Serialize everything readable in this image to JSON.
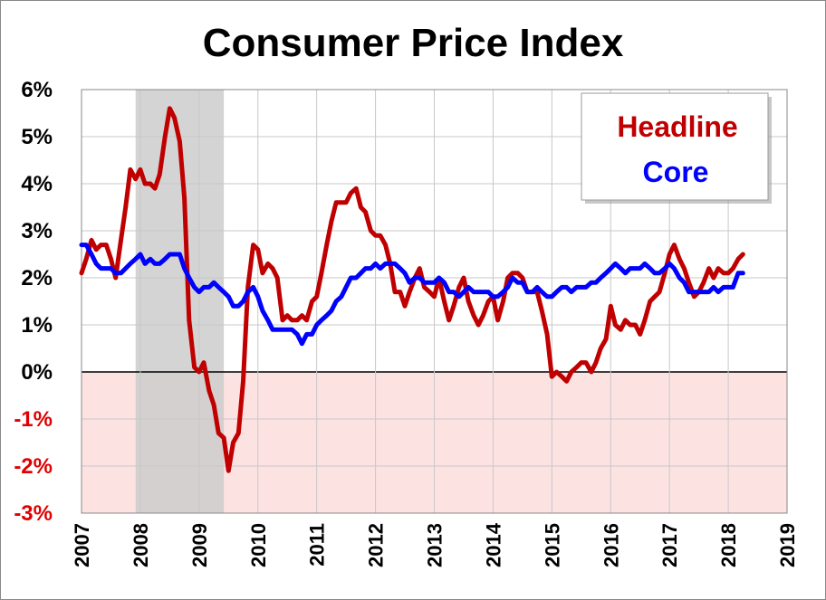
{
  "chart_data": {
    "type": "line",
    "title": "Consumer Price Index",
    "xlabel": "",
    "ylabel": "",
    "xlim": [
      2007,
      2019
    ],
    "ylim": [
      -3,
      6
    ],
    "x_ticks": [
      "2007",
      "2008",
      "2009",
      "2010",
      "2011",
      "2012",
      "2013",
      "2014",
      "2015",
      "2016",
      "2017",
      "2018",
      "2019"
    ],
    "y_ticks": [
      {
        "value": 6,
        "label": "6%"
      },
      {
        "value": 5,
        "label": "5%"
      },
      {
        "value": 4,
        "label": "4%"
      },
      {
        "value": 3,
        "label": "3%"
      },
      {
        "value": 2,
        "label": "2%"
      },
      {
        "value": 1,
        "label": "1%"
      },
      {
        "value": 0,
        "label": "0%"
      },
      {
        "value": -1,
        "label": "-1%"
      },
      {
        "value": -2,
        "label": "-2%"
      },
      {
        "value": -3,
        "label": "-3%"
      }
    ],
    "recession": {
      "start": 2007.92,
      "end": 2009.42,
      "color": "#cccccc"
    },
    "negative_region_color": "#fde2e2",
    "legend_position": "top-right",
    "series": [
      {
        "name": "Headline",
        "color": "#c00000",
        "points": [
          [
            2007.0,
            2.1
          ],
          [
            2007.08,
            2.4
          ],
          [
            2007.17,
            2.8
          ],
          [
            2007.25,
            2.6
          ],
          [
            2007.33,
            2.7
          ],
          [
            2007.42,
            2.7
          ],
          [
            2007.5,
            2.4
          ],
          [
            2007.58,
            2.0
          ],
          [
            2007.67,
            2.8
          ],
          [
            2007.75,
            3.5
          ],
          [
            2007.83,
            4.3
          ],
          [
            2007.92,
            4.1
          ],
          [
            2008.0,
            4.3
          ],
          [
            2008.08,
            4.0
          ],
          [
            2008.17,
            4.0
          ],
          [
            2008.25,
            3.9
          ],
          [
            2008.33,
            4.2
          ],
          [
            2008.42,
            5.0
          ],
          [
            2008.5,
            5.6
          ],
          [
            2008.58,
            5.4
          ],
          [
            2008.67,
            4.9
          ],
          [
            2008.75,
            3.7
          ],
          [
            2008.83,
            1.1
          ],
          [
            2008.92,
            0.1
          ],
          [
            2009.0,
            0.0
          ],
          [
            2009.08,
            0.2
          ],
          [
            2009.17,
            -0.4
          ],
          [
            2009.25,
            -0.7
          ],
          [
            2009.33,
            -1.3
          ],
          [
            2009.42,
            -1.4
          ],
          [
            2009.5,
            -2.1
          ],
          [
            2009.58,
            -1.5
          ],
          [
            2009.67,
            -1.3
          ],
          [
            2009.75,
            -0.2
          ],
          [
            2009.83,
            1.8
          ],
          [
            2009.92,
            2.7
          ],
          [
            2010.0,
            2.6
          ],
          [
            2010.08,
            2.1
          ],
          [
            2010.17,
            2.3
          ],
          [
            2010.25,
            2.2
          ],
          [
            2010.33,
            2.0
          ],
          [
            2010.42,
            1.1
          ],
          [
            2010.5,
            1.2
          ],
          [
            2010.58,
            1.1
          ],
          [
            2010.67,
            1.1
          ],
          [
            2010.75,
            1.2
          ],
          [
            2010.83,
            1.1
          ],
          [
            2010.92,
            1.5
          ],
          [
            2011.0,
            1.6
          ],
          [
            2011.08,
            2.1
          ],
          [
            2011.17,
            2.7
          ],
          [
            2011.25,
            3.2
          ],
          [
            2011.33,
            3.6
          ],
          [
            2011.42,
            3.6
          ],
          [
            2011.5,
            3.6
          ],
          [
            2011.58,
            3.8
          ],
          [
            2011.67,
            3.9
          ],
          [
            2011.75,
            3.5
          ],
          [
            2011.83,
            3.4
          ],
          [
            2011.92,
            3.0
          ],
          [
            2012.0,
            2.9
          ],
          [
            2012.08,
            2.9
          ],
          [
            2012.17,
            2.7
          ],
          [
            2012.25,
            2.3
          ],
          [
            2012.33,
            1.7
          ],
          [
            2012.42,
            1.7
          ],
          [
            2012.5,
            1.4
          ],
          [
            2012.58,
            1.7
          ],
          [
            2012.67,
            2.0
          ],
          [
            2012.75,
            2.2
          ],
          [
            2012.83,
            1.8
          ],
          [
            2012.92,
            1.7
          ],
          [
            2013.0,
            1.6
          ],
          [
            2013.08,
            2.0
          ],
          [
            2013.17,
            1.5
          ],
          [
            2013.25,
            1.1
          ],
          [
            2013.33,
            1.4
          ],
          [
            2013.42,
            1.8
          ],
          [
            2013.5,
            2.0
          ],
          [
            2013.58,
            1.5
          ],
          [
            2013.67,
            1.2
          ],
          [
            2013.75,
            1.0
          ],
          [
            2013.83,
            1.2
          ],
          [
            2013.92,
            1.5
          ],
          [
            2014.0,
            1.6
          ],
          [
            2014.08,
            1.1
          ],
          [
            2014.17,
            1.5
          ],
          [
            2014.25,
            2.0
          ],
          [
            2014.33,
            2.1
          ],
          [
            2014.42,
            2.1
          ],
          [
            2014.5,
            2.0
          ],
          [
            2014.58,
            1.7
          ],
          [
            2014.67,
            1.7
          ],
          [
            2014.75,
            1.7
          ],
          [
            2014.83,
            1.3
          ],
          [
            2014.92,
            0.8
          ],
          [
            2015.0,
            -0.1
          ],
          [
            2015.08,
            0.0
          ],
          [
            2015.17,
            -0.1
          ],
          [
            2015.25,
            -0.2
          ],
          [
            2015.33,
            0.0
          ],
          [
            2015.42,
            0.1
          ],
          [
            2015.5,
            0.2
          ],
          [
            2015.58,
            0.2
          ],
          [
            2015.67,
            0.0
          ],
          [
            2015.75,
            0.2
          ],
          [
            2015.83,
            0.5
          ],
          [
            2015.92,
            0.7
          ],
          [
            2016.0,
            1.4
          ],
          [
            2016.08,
            1.0
          ],
          [
            2016.17,
            0.9
          ],
          [
            2016.25,
            1.1
          ],
          [
            2016.33,
            1.0
          ],
          [
            2016.42,
            1.0
          ],
          [
            2016.5,
            0.8
          ],
          [
            2016.58,
            1.1
          ],
          [
            2016.67,
            1.5
          ],
          [
            2016.75,
            1.6
          ],
          [
            2016.83,
            1.7
          ],
          [
            2016.92,
            2.1
          ],
          [
            2017.0,
            2.5
          ],
          [
            2017.08,
            2.7
          ],
          [
            2017.17,
            2.4
          ],
          [
            2017.25,
            2.2
          ],
          [
            2017.33,
            1.9
          ],
          [
            2017.42,
            1.6
          ],
          [
            2017.5,
            1.7
          ],
          [
            2017.58,
            1.9
          ],
          [
            2017.67,
            2.2
          ],
          [
            2017.75,
            2.0
          ],
          [
            2017.83,
            2.2
          ],
          [
            2017.92,
            2.1
          ],
          [
            2018.0,
            2.1
          ],
          [
            2018.08,
            2.2
          ],
          [
            2018.17,
            2.4
          ],
          [
            2018.25,
            2.5
          ]
        ]
      },
      {
        "name": "Core",
        "color": "#0000ff",
        "points": [
          [
            2007.0,
            2.7
          ],
          [
            2007.08,
            2.7
          ],
          [
            2007.17,
            2.5
          ],
          [
            2007.25,
            2.3
          ],
          [
            2007.33,
            2.2
          ],
          [
            2007.42,
            2.2
          ],
          [
            2007.5,
            2.2
          ],
          [
            2007.58,
            2.1
          ],
          [
            2007.67,
            2.1
          ],
          [
            2007.75,
            2.2
          ],
          [
            2007.83,
            2.3
          ],
          [
            2007.92,
            2.4
          ],
          [
            2008.0,
            2.5
          ],
          [
            2008.08,
            2.3
          ],
          [
            2008.17,
            2.4
          ],
          [
            2008.25,
            2.3
          ],
          [
            2008.33,
            2.3
          ],
          [
            2008.42,
            2.4
          ],
          [
            2008.5,
            2.5
          ],
          [
            2008.58,
            2.5
          ],
          [
            2008.67,
            2.5
          ],
          [
            2008.75,
            2.2
          ],
          [
            2008.83,
            2.0
          ],
          [
            2008.92,
            1.8
          ],
          [
            2009.0,
            1.7
          ],
          [
            2009.08,
            1.8
          ],
          [
            2009.17,
            1.8
          ],
          [
            2009.25,
            1.9
          ],
          [
            2009.33,
            1.8
          ],
          [
            2009.42,
            1.7
          ],
          [
            2009.5,
            1.6
          ],
          [
            2009.58,
            1.4
          ],
          [
            2009.67,
            1.4
          ],
          [
            2009.75,
            1.5
          ],
          [
            2009.83,
            1.7
          ],
          [
            2009.92,
            1.8
          ],
          [
            2010.0,
            1.6
          ],
          [
            2010.08,
            1.3
          ],
          [
            2010.17,
            1.1
          ],
          [
            2010.25,
            0.9
          ],
          [
            2010.33,
            0.9
          ],
          [
            2010.42,
            0.9
          ],
          [
            2010.5,
            0.9
          ],
          [
            2010.58,
            0.9
          ],
          [
            2010.67,
            0.8
          ],
          [
            2010.75,
            0.6
          ],
          [
            2010.83,
            0.8
          ],
          [
            2010.92,
            0.8
          ],
          [
            2011.0,
            1.0
          ],
          [
            2011.08,
            1.1
          ],
          [
            2011.17,
            1.2
          ],
          [
            2011.25,
            1.3
          ],
          [
            2011.33,
            1.5
          ],
          [
            2011.42,
            1.6
          ],
          [
            2011.5,
            1.8
          ],
          [
            2011.58,
            2.0
          ],
          [
            2011.67,
            2.0
          ],
          [
            2011.75,
            2.1
          ],
          [
            2011.83,
            2.2
          ],
          [
            2011.92,
            2.2
          ],
          [
            2012.0,
            2.3
          ],
          [
            2012.08,
            2.2
          ],
          [
            2012.17,
            2.3
          ],
          [
            2012.25,
            2.3
          ],
          [
            2012.33,
            2.3
          ],
          [
            2012.42,
            2.2
          ],
          [
            2012.5,
            2.1
          ],
          [
            2012.58,
            1.9
          ],
          [
            2012.67,
            2.0
          ],
          [
            2012.75,
            2.0
          ],
          [
            2012.83,
            1.9
          ],
          [
            2012.92,
            1.9
          ],
          [
            2013.0,
            1.9
          ],
          [
            2013.08,
            2.0
          ],
          [
            2013.17,
            1.9
          ],
          [
            2013.25,
            1.7
          ],
          [
            2013.33,
            1.7
          ],
          [
            2013.42,
            1.6
          ],
          [
            2013.5,
            1.7
          ],
          [
            2013.58,
            1.8
          ],
          [
            2013.67,
            1.7
          ],
          [
            2013.75,
            1.7
          ],
          [
            2013.83,
            1.7
          ],
          [
            2013.92,
            1.7
          ],
          [
            2014.0,
            1.6
          ],
          [
            2014.08,
            1.6
          ],
          [
            2014.17,
            1.7
          ],
          [
            2014.25,
            1.8
          ],
          [
            2014.33,
            2.0
          ],
          [
            2014.42,
            1.9
          ],
          [
            2014.5,
            1.9
          ],
          [
            2014.58,
            1.7
          ],
          [
            2014.67,
            1.7
          ],
          [
            2014.75,
            1.8
          ],
          [
            2014.83,
            1.7
          ],
          [
            2014.92,
            1.6
          ],
          [
            2015.0,
            1.6
          ],
          [
            2015.08,
            1.7
          ],
          [
            2015.17,
            1.8
          ],
          [
            2015.25,
            1.8
          ],
          [
            2015.33,
            1.7
          ],
          [
            2015.42,
            1.8
          ],
          [
            2015.5,
            1.8
          ],
          [
            2015.58,
            1.8
          ],
          [
            2015.67,
            1.9
          ],
          [
            2015.75,
            1.9
          ],
          [
            2015.83,
            2.0
          ],
          [
            2015.92,
            2.1
          ],
          [
            2016.0,
            2.2
          ],
          [
            2016.08,
            2.3
          ],
          [
            2016.17,
            2.2
          ],
          [
            2016.25,
            2.1
          ],
          [
            2016.33,
            2.2
          ],
          [
            2016.42,
            2.2
          ],
          [
            2016.5,
            2.2
          ],
          [
            2016.58,
            2.3
          ],
          [
            2016.67,
            2.2
          ],
          [
            2016.75,
            2.1
          ],
          [
            2016.83,
            2.1
          ],
          [
            2016.92,
            2.2
          ],
          [
            2017.0,
            2.3
          ],
          [
            2017.08,
            2.2
          ],
          [
            2017.17,
            2.0
          ],
          [
            2017.25,
            1.9
          ],
          [
            2017.33,
            1.7
          ],
          [
            2017.42,
            1.7
          ],
          [
            2017.5,
            1.7
          ],
          [
            2017.58,
            1.7
          ],
          [
            2017.67,
            1.7
          ],
          [
            2017.75,
            1.8
          ],
          [
            2017.83,
            1.7
          ],
          [
            2017.92,
            1.8
          ],
          [
            2018.0,
            1.8
          ],
          [
            2018.08,
            1.8
          ],
          [
            2018.17,
            2.1
          ],
          [
            2018.25,
            2.1
          ]
        ]
      }
    ]
  }
}
